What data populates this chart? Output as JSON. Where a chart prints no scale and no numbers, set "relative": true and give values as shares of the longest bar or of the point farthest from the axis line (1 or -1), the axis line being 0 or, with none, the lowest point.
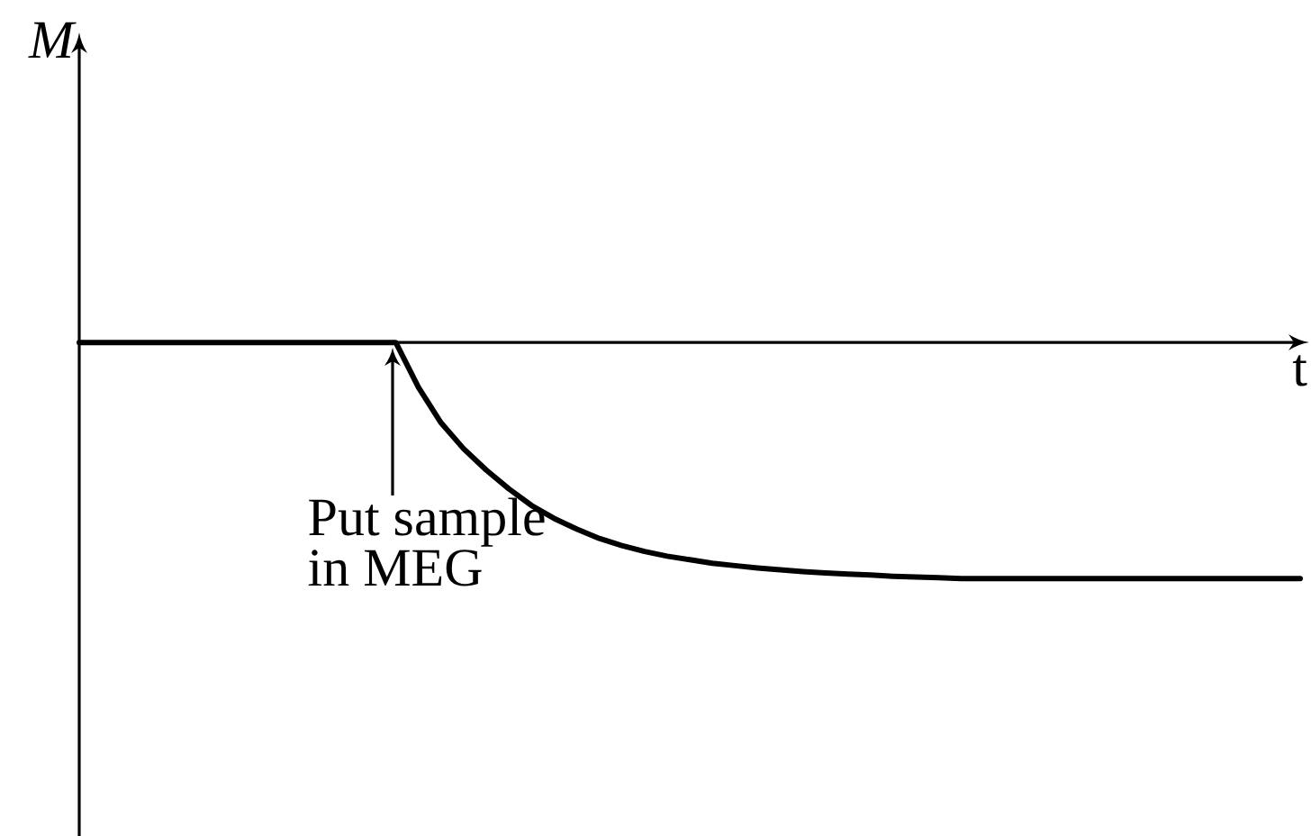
{
  "chart_data": {
    "type": "line",
    "xlabel": "t",
    "relative": true,
    "marker": "none",
    "line_style": "solid",
    "categories": [
      null,
      null,
      null,
      null,
      null,
      null,
      null,
      null,
      null,
      null,
      null,
      null,
      null,
      null,
      null,
      null,
      null,
      null,
      null,
      null,
      null,
      null,
      null,
      null,
      null,
      null,
      null,
      null,
      null,
      null,
      null,
      null,
      null,
      null,
      null,
      null,
      null,
      null,
      null,
      null,
      null,
      null,
      null,
      null,
      null,
      null,
      null,
      null,
      null,
      null,
      null,
      null,
      null,
      null,
      null
    ],
    "series": [
      {
        "color": "#000000",
        "values": [
          0,
          0,
          0,
          0,
          0,
          0,
          0,
          0,
          0,
          0,
          0,
          0,
          0,
          0,
          0,
          -0.19,
          -0.34,
          -0.45,
          -0.54,
          -0.62,
          -0.69,
          -0.745,
          -0.79,
          -0.83,
          -0.86,
          -0.885,
          -0.905,
          -0.92,
          -0.935,
          -0.945,
          -0.955,
          -0.963,
          -0.97,
          -0.976,
          -0.981,
          -0.985,
          -0.99,
          -0.993,
          -0.996,
          -1,
          -1,
          -1,
          -1,
          -1,
          -1,
          -1,
          -1,
          -1,
          -1,
          -1,
          -1,
          -1,
          -1,
          -1,
          -1
        ]
      }
    ],
    "annotations": [
      "M",
      "Put sample in MEG"
    ]
  }
}
